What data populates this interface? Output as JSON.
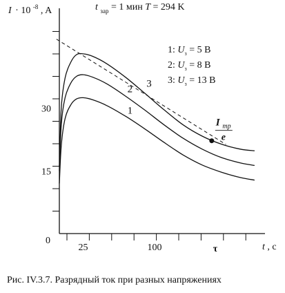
{
  "figure": {
    "caption": "Рис. IV.3.7. Разрядный ток при разных напряжениях"
  },
  "chart_data": {
    "type": "line",
    "ylabel_main": "I",
    "ylabel_scale": "· 10",
    "ylabel_exp": "-8",
    "ylabel_unit": ", A",
    "xlabel_main": "t",
    "xlabel_unit": ", c",
    "origin_label": "0",
    "y_ticks": [
      {
        "value": 15,
        "label": "15"
      },
      {
        "value": 30,
        "label": "30"
      }
    ],
    "x_ticks": [
      {
        "value": 25,
        "label": "25"
      },
      {
        "value": 100,
        "label": "100"
      }
    ],
    "xlim": [
      -8,
      220
    ],
    "ylim": [
      0,
      47
    ],
    "header": {
      "t_symbol": "t",
      "t_sub": "зар",
      "t_value": " = 1 мин ",
      "T_symbol": "T",
      "T_value": " = 294 K"
    },
    "legend": [
      {
        "num": "1:",
        "symbol": "U",
        "sub": "з",
        "value": " = 5 В"
      },
      {
        "num": "2:",
        "symbol": "U",
        "sub": "з",
        "value": " = 8 В"
      },
      {
        "num": "3:",
        "symbol": "U",
        "sub": "з",
        "value": " = 13 В"
      }
    ],
    "series": [
      {
        "name": "1",
        "x": [
          0,
          2,
          6,
          12,
          18,
          25,
          35,
          50,
          70,
          90,
          110,
          130,
          150,
          170,
          190,
          205
        ],
        "y": [
          12,
          21,
          27.5,
          30.8,
          32.2,
          32.5,
          32,
          30.6,
          28,
          25,
          21.8,
          18.8,
          16.4,
          14.7,
          13.4,
          12.8
        ]
      },
      {
        "name": "2",
        "x": [
          0,
          2,
          6,
          12,
          18,
          25,
          35,
          50,
          70,
          90,
          110,
          130,
          150,
          170,
          190,
          205
        ],
        "y": [
          15,
          26,
          32.5,
          36,
          37.6,
          38,
          37.4,
          35.8,
          32.8,
          29.5,
          26,
          22.8,
          20.2,
          18.2,
          16.9,
          16.3
        ]
      },
      {
        "name": "3",
        "x": [
          0,
          2,
          6,
          12,
          18,
          25,
          35,
          50,
          70,
          90,
          110,
          130,
          150,
          170,
          190,
          205
        ],
        "y": [
          16,
          30,
          37.2,
          41,
          42.8,
          43,
          42.4,
          40.6,
          37.3,
          33.5,
          29.6,
          26,
          23.3,
          21.4,
          20.2,
          19.8
        ]
      }
    ],
    "tangent": {
      "x": [
        -3,
        175
      ],
      "y": [
        46.5,
        21.3
      ]
    },
    "point": {
      "x": 160,
      "y": 22.2
    },
    "point_label": {
      "symbol": "I",
      "sub": "тр",
      "below": "e"
    },
    "tau_label": "τ",
    "tau_x": 160
  }
}
